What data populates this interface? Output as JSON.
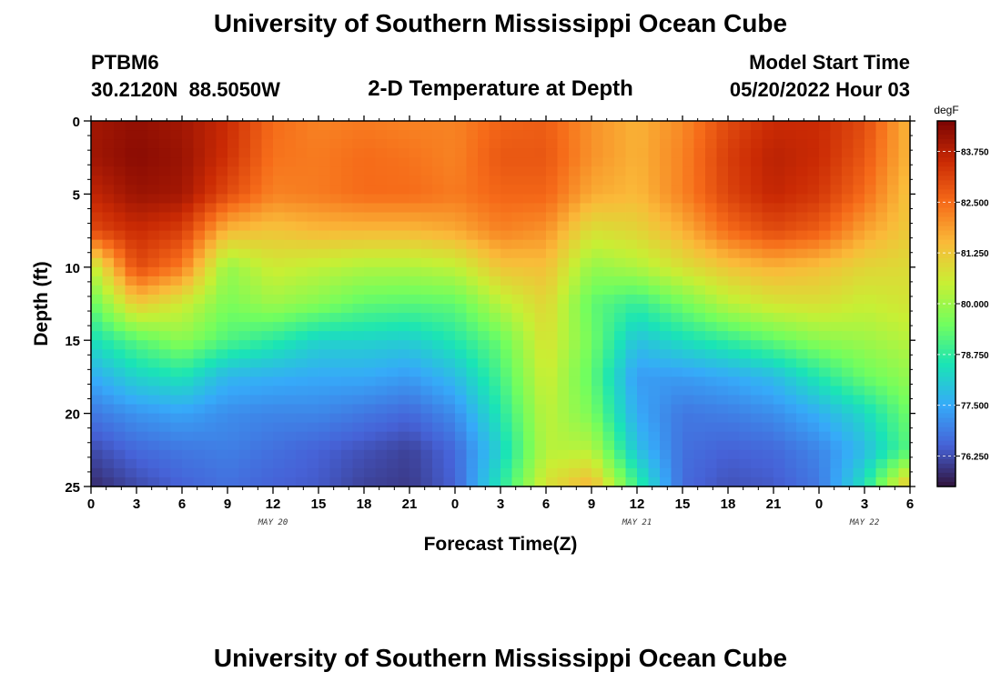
{
  "header": {
    "title": "University of Southern Mississippi Ocean Cube",
    "station": "PTBM6",
    "coords": "30.2120N  88.5050W",
    "subtitle": "2-D Temperature at Depth",
    "start_label": "Model Start Time",
    "start_time": "05/20/2022 Hour 03"
  },
  "footer": {
    "title": "University of Southern Mississippi Ocean Cube"
  },
  "chart_data": {
    "type": "heatmap",
    "title": "2-D Temperature at Depth",
    "xlabel": "Forecast Time(Z)",
    "ylabel": "Depth (ft)",
    "x_range_hours": [
      0,
      54
    ],
    "y_range_ft": [
      0,
      25
    ],
    "x_tick_hours": [
      0,
      3,
      6,
      9,
      12,
      15,
      18,
      21,
      24,
      27,
      30,
      33,
      36,
      39,
      42,
      45,
      48,
      51,
      54
    ],
    "x_tick_labels": [
      "0",
      "3",
      "6",
      "9",
      "12",
      "15",
      "18",
      "21",
      "0",
      "3",
      "6",
      "9",
      "12",
      "15",
      "18",
      "21",
      "0",
      "3",
      "6"
    ],
    "y_ticks": [
      0,
      5,
      10,
      15,
      20,
      25
    ],
    "y_tick_labels": [
      "0",
      "5",
      "10",
      "15",
      "20",
      "25"
    ],
    "date_labels": [
      {
        "text": "MAY 20",
        "hour": 12
      },
      {
        "text": "MAY 21",
        "hour": 36
      },
      {
        "text": "MAY 22",
        "hour": 51
      }
    ],
    "colorbar": {
      "unit": "degF",
      "range": [
        75.5,
        84.5
      ],
      "ticks": [
        83.75,
        82.5,
        81.25,
        80.0,
        78.75,
        77.5,
        76.25
      ],
      "tick_labels": [
        "83.750",
        "82.500",
        "81.250",
        "80.000",
        "78.750",
        "77.500",
        "76.250"
      ],
      "colors": [
        "#30123b",
        "#4662d7",
        "#36aaf9",
        "#1ae4b6",
        "#72fe5e",
        "#c8ef34",
        "#faba39",
        "#f66b19",
        "#ca2a04",
        "#7a0403"
      ]
    },
    "columns_hours": [
      0,
      3,
      6,
      9,
      12,
      15,
      18,
      21,
      24,
      27,
      30,
      33,
      36,
      39,
      42,
      45,
      48,
      51,
      54
    ],
    "rows_depth_ft": [
      0,
      2.5,
      5,
      7.5,
      10,
      12.5,
      15,
      17.5,
      20,
      22.5,
      25
    ],
    "temperature_degF": [
      [
        84.0,
        84.2,
        84.0,
        83.5,
        82.5,
        82.2,
        82.3,
        82.2,
        82.2,
        82.6,
        82.7,
        82.0,
        81.6,
        82.1,
        83.0,
        83.5,
        83.5,
        83.0,
        81.5
      ],
      [
        84.0,
        84.3,
        84.1,
        83.4,
        82.4,
        82.3,
        82.5,
        82.4,
        82.2,
        82.8,
        82.8,
        82.0,
        81.6,
        82.2,
        83.2,
        83.7,
        83.5,
        82.8,
        81.5
      ],
      [
        83.6,
        84.1,
        84.0,
        83.0,
        82.2,
        82.3,
        82.5,
        82.5,
        82.3,
        82.6,
        82.6,
        81.7,
        81.5,
        82.2,
        83.1,
        83.6,
        83.3,
        82.5,
        81.3
      ],
      [
        83.0,
        83.5,
        83.2,
        81.5,
        81.3,
        81.5,
        81.5,
        81.5,
        81.7,
        82.2,
        82.0,
        80.8,
        81.0,
        81.6,
        82.5,
        83.0,
        82.7,
        81.8,
        81.2
      ],
      [
        80.3,
        83.0,
        82.3,
        79.9,
        80.6,
        80.4,
        80.2,
        80.2,
        80.4,
        81.3,
        81.4,
        79.9,
        80.2,
        80.8,
        81.3,
        81.6,
        81.4,
        81.0,
        80.9
      ],
      [
        79.3,
        81.2,
        80.6,
        79.6,
        80.0,
        79.7,
        79.3,
        79.2,
        79.3,
        80.3,
        81.0,
        79.3,
        78.8,
        79.5,
        80.3,
        80.7,
        80.8,
        80.5,
        80.7
      ],
      [
        78.4,
        79.2,
        79.8,
        79.1,
        78.7,
        78.2,
        78.2,
        78.1,
        78.6,
        79.4,
        80.8,
        79.5,
        77.9,
        78.4,
        78.8,
        79.3,
        79.8,
        80.0,
        80.3
      ],
      [
        77.5,
        78.2,
        78.5,
        77.7,
        77.6,
        77.5,
        77.5,
        77.3,
        77.8,
        79.0,
        80.6,
        79.3,
        77.3,
        77.3,
        77.5,
        77.8,
        78.6,
        79.4,
        79.9
      ],
      [
        76.8,
        77.2,
        77.4,
        77.1,
        77.0,
        77.0,
        76.8,
        76.6,
        77.1,
        78.6,
        80.4,
        79.6,
        77.5,
        76.8,
        76.9,
        77.1,
        77.6,
        78.3,
        79.5
      ],
      [
        76.2,
        76.6,
        76.8,
        76.9,
        76.7,
        76.5,
        76.3,
        76.1,
        76.6,
        78.2,
        80.3,
        80.3,
        77.9,
        76.7,
        76.5,
        76.6,
        77.0,
        77.8,
        79.2
      ],
      [
        75.8,
        76.2,
        76.5,
        76.7,
        76.5,
        76.4,
        76.1,
        76.0,
        76.5,
        78.6,
        80.8,
        81.6,
        78.9,
        76.6,
        76.3,
        76.4,
        76.8,
        78.5,
        81.5
      ]
    ]
  }
}
